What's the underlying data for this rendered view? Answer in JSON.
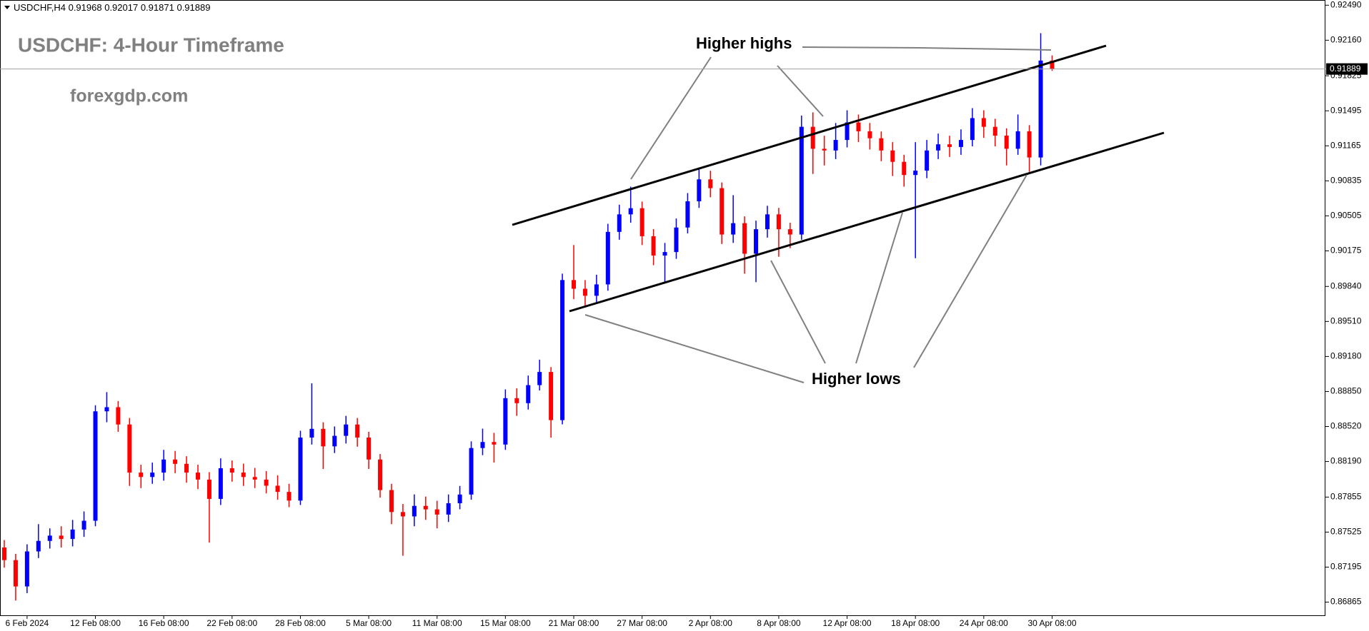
{
  "chart_data": {
    "type": "candlestick",
    "symbol": "USDCHF,H4",
    "title": "USDCHF: 4-Hour Timeframe",
    "watermark": "forexgdp.com",
    "annotations": [
      "Higher highs",
      "Higher lows"
    ],
    "up_color": "#0000ff",
    "down_color": "#ff0000",
    "ylim": [
      0.86741,
      0.92539
    ],
    "yticks": [
      {
        "value": 0.86865,
        "label": "0.86865"
      },
      {
        "value": 0.87195,
        "label": "0.87195"
      },
      {
        "value": 0.87525,
        "label": "0.87525"
      },
      {
        "value": 0.87855,
        "label": "0.87855"
      },
      {
        "value": 0.8819,
        "label": "0.88190"
      },
      {
        "value": 0.8852,
        "label": "0.88520"
      },
      {
        "value": 0.8885,
        "label": "0.88850"
      },
      {
        "value": 0.8918,
        "label": "0.89180"
      },
      {
        "value": 0.8951,
        "label": "0.89510"
      },
      {
        "value": 0.8984,
        "label": "0.89840"
      },
      {
        "value": 0.90175,
        "label": "0.90175"
      },
      {
        "value": 0.90505,
        "label": "0.90505"
      },
      {
        "value": 0.90835,
        "label": "0.90835"
      },
      {
        "value": 0.91165,
        "label": "0.91165"
      },
      {
        "value": 0.91495,
        "label": "0.91495"
      },
      {
        "value": 0.91825,
        "label": "0.91825"
      },
      {
        "value": 0.9216,
        "label": "0.92160"
      },
      {
        "value": 0.9249,
        "label": "0.92490"
      }
    ],
    "categories": [
      null,
      null,
      "6 Feb 2024",
      null,
      null,
      null,
      null,
      null,
      "12 Feb 08:00",
      null,
      null,
      null,
      null,
      null,
      "16 Feb 08:00",
      null,
      null,
      null,
      null,
      null,
      "22 Feb 08:00",
      null,
      null,
      null,
      null,
      null,
      "28 Feb 08:00",
      null,
      null,
      null,
      null,
      null,
      "5 Mar 08:00",
      null,
      null,
      null,
      null,
      null,
      "11 Mar 08:00",
      null,
      null,
      null,
      null,
      null,
      "15 Mar 08:00",
      null,
      null,
      null,
      null,
      null,
      "21 Mar 08:00",
      null,
      null,
      null,
      null,
      null,
      "27 Mar 08:00",
      null,
      null,
      null,
      null,
      null,
      "2 Apr 08:00",
      null,
      null,
      null,
      null,
      null,
      "8 Apr 08:00",
      null,
      null,
      null,
      null,
      null,
      "12 Apr 08:00",
      null,
      null,
      null,
      null,
      null,
      "18 Apr 08:00",
      null,
      null,
      null,
      null,
      null,
      "24 Apr 08:00",
      null,
      null,
      null,
      null,
      null,
      "30 Apr 08:00"
    ],
    "open": [
      0.8738,
      0.87261,
      0.87013,
      0.87343,
      0.87442,
      0.87492,
      0.8746,
      0.87549,
      0.87632,
      0.88663,
      0.88702,
      0.88539,
      0.88086,
      0.88044,
      0.88086,
      0.88209,
      0.88168,
      0.88086,
      0.8802,
      0.87838,
      0.88127,
      0.88086,
      0.88044,
      0.8802,
      0.87962,
      0.87904,
      0.87822,
      0.88416,
      0.88498,
      0.88333,
      0.88432,
      0.88539,
      0.88416,
      0.88209,
      0.87921,
      0.87714,
      0.87673,
      0.87772,
      0.87739,
      0.8769,
      0.87797,
      0.87879,
      0.88317,
      0.88374,
      0.8835,
      0.88787,
      0.8874,
      0.8891,
      0.89034,
      0.8858,
      0.899,
      0.89818,
      0.89752,
      0.89859,
      0.90354,
      0.90519,
      0.90577,
      0.90313,
      0.90131,
      0.90164,
      0.90395,
      0.90642,
      0.90849,
      0.90766,
      0.90329,
      0.90436,
      0.90148,
      0.90379,
      0.90519,
      0.90379,
      0.90329,
      0.91344,
      0.91137,
      0.91121,
      0.9122,
      0.91385,
      0.91302,
      0.91236,
      0.91121,
      0.91014,
      0.9089,
      0.90931,
      0.91121,
      0.91179,
      0.91154,
      0.9122,
      0.91426,
      0.91344,
      0.91261,
      0.91137,
      0.91302,
      0.91055,
      0.91968
    ],
    "high": [
      0.8745,
      0.8732,
      0.8741,
      0.876,
      0.8756,
      0.8758,
      0.8764,
      0.8772,
      0.8872,
      0.88844,
      0.8876,
      0.886,
      0.8816,
      0.8818,
      0.883,
      0.8829,
      0.8824,
      0.8816,
      0.8809,
      0.8822,
      0.882,
      0.8817,
      0.8813,
      0.881,
      0.8806,
      0.8798,
      0.8848,
      0.88927,
      0.8856,
      0.8852,
      0.8862,
      0.886,
      0.8847,
      0.8826,
      0.8798,
      0.8779,
      0.8788,
      0.8786,
      0.8782,
      0.8788,
      0.8796,
      0.8838,
      0.885,
      0.8846,
      0.8887,
      0.8888,
      0.89,
      0.8915,
      0.8908,
      0.8996,
      0.9023,
      0.899,
      0.8995,
      0.9043,
      0.9061,
      0.9078,
      0.9064,
      0.9038,
      0.9025,
      0.9048,
      0.9072,
      0.9096,
      0.9093,
      0.9082,
      0.907,
      0.905,
      0.9046,
      0.906,
      0.9058,
      0.9044,
      0.9145,
      0.9148,
      0.9126,
      0.9138,
      0.915,
      0.9146,
      0.9138,
      0.913,
      0.912,
      0.9108,
      0.912,
      0.9122,
      0.9128,
      0.9126,
      0.9132,
      0.9152,
      0.915,
      0.9142,
      0.9133,
      0.9146,
      0.9136,
      0.92226,
      0.92017
    ],
    "low": [
      0.8719,
      0.8688,
      0.8695,
      0.8728,
      0.8737,
      0.8738,
      0.8739,
      0.8748,
      0.8758,
      0.8856,
      0.8847,
      0.8796,
      0.8794,
      0.8798,
      0.8801,
      0.8808,
      0.8799,
      0.8793,
      0.87426,
      0.8778,
      0.88,
      0.8796,
      0.8794,
      0.8789,
      0.8783,
      0.8776,
      0.8778,
      0.8835,
      0.8812,
      0.8827,
      0.8836,
      0.8833,
      0.8812,
      0.8785,
      0.876,
      0.87302,
      0.8758,
      0.8764,
      0.8756,
      0.8762,
      0.8774,
      0.8783,
      0.8825,
      0.8818,
      0.883,
      0.8862,
      0.8868,
      0.8886,
      0.88415,
      0.8854,
      0.8972,
      0.8964,
      0.8968,
      0.898,
      0.9028,
      0.9044,
      0.9023,
      0.9004,
      0.8988,
      0.901,
      0.9034,
      0.9058,
      0.9068,
      0.9024,
      0.9025,
      0.8996,
      0.8988,
      0.903,
      0.9012,
      0.902,
      0.9028,
      0.909,
      0.9098,
      0.9104,
      0.9115,
      0.912,
      0.9113,
      0.9102,
      0.9088,
      0.9078,
      0.90106,
      0.9086,
      0.9104,
      0.9106,
      0.9108,
      0.9116,
      0.9124,
      0.9116,
      0.9098,
      0.9108,
      0.9092,
      0.9098,
      0.91871
    ],
    "close": [
      0.87261,
      0.87013,
      0.87343,
      0.87442,
      0.87492,
      0.8746,
      0.87549,
      0.87632,
      0.88663,
      0.88702,
      0.88539,
      0.88086,
      0.88044,
      0.88086,
      0.88209,
      0.88168,
      0.88086,
      0.8802,
      0.87838,
      0.88127,
      0.88086,
      0.88044,
      0.8802,
      0.87962,
      0.87904,
      0.87822,
      0.88416,
      0.88498,
      0.88333,
      0.88432,
      0.88539,
      0.88416,
      0.88209,
      0.87921,
      0.87714,
      0.87673,
      0.87772,
      0.87739,
      0.8769,
      0.87797,
      0.87879,
      0.88317,
      0.88374,
      0.8835,
      0.88787,
      0.8874,
      0.8891,
      0.89034,
      0.8858,
      0.899,
      0.89818,
      0.89752,
      0.89859,
      0.90354,
      0.90519,
      0.90577,
      0.90313,
      0.90131,
      0.90164,
      0.90395,
      0.90642,
      0.90849,
      0.90766,
      0.90329,
      0.90436,
      0.90148,
      0.90379,
      0.90519,
      0.90379,
      0.90329,
      0.91344,
      0.91137,
      0.91121,
      0.9122,
      0.91385,
      0.91302,
      0.91236,
      0.91121,
      0.91014,
      0.9089,
      0.90931,
      0.91121,
      0.91179,
      0.91154,
      0.9122,
      0.91426,
      0.91344,
      0.91261,
      0.91137,
      0.91302,
      0.91055,
      0.91968,
      0.91889
    ]
  }
}
